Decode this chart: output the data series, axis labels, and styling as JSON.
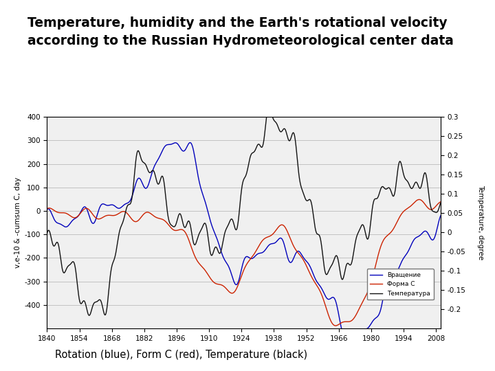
{
  "title_line1": "Temperature, humidity and the Earth's rotational velocity",
  "title_line2": "according to the Russian Hydrometeorological center data",
  "ylabel_left": "v,e-10 & -cumsum C, day",
  "ylabel_right": "Temperature, degree",
  "ylim_left": [
    -500,
    400
  ],
  "ylim_right": [
    -0.25,
    0.3
  ],
  "yticks_left": [
    -400,
    -300,
    -200,
    -100,
    0,
    100,
    200,
    300,
    400
  ],
  "yticks_right": [
    -0.2,
    -0.15,
    -0.1,
    -0.05,
    0,
    0.05,
    0.1,
    0.15,
    0.2,
    0.25,
    0.3
  ],
  "xticks": [
    1840,
    1854,
    1868,
    1882,
    1896,
    1910,
    1924,
    1938,
    1952,
    1966,
    1980,
    1994,
    2008
  ],
  "x_start": 1840,
  "x_end": 2010,
  "color_blue": "#0000bb",
  "color_red": "#cc2200",
  "color_black": "#111111",
  "legend_labels": [
    "Вращение",
    "Форма С",
    "Температура"
  ],
  "annotation": "Rotation (blue), Form C (red), Temperature (black)",
  "background_color": "#ffffff",
  "plot_bg": "#f0f0f0",
  "grid_color": "#bbbbbb",
  "title_fontsize": 13.5,
  "tick_fontsize": 7.5,
  "annotation_fontsize": 10.5
}
